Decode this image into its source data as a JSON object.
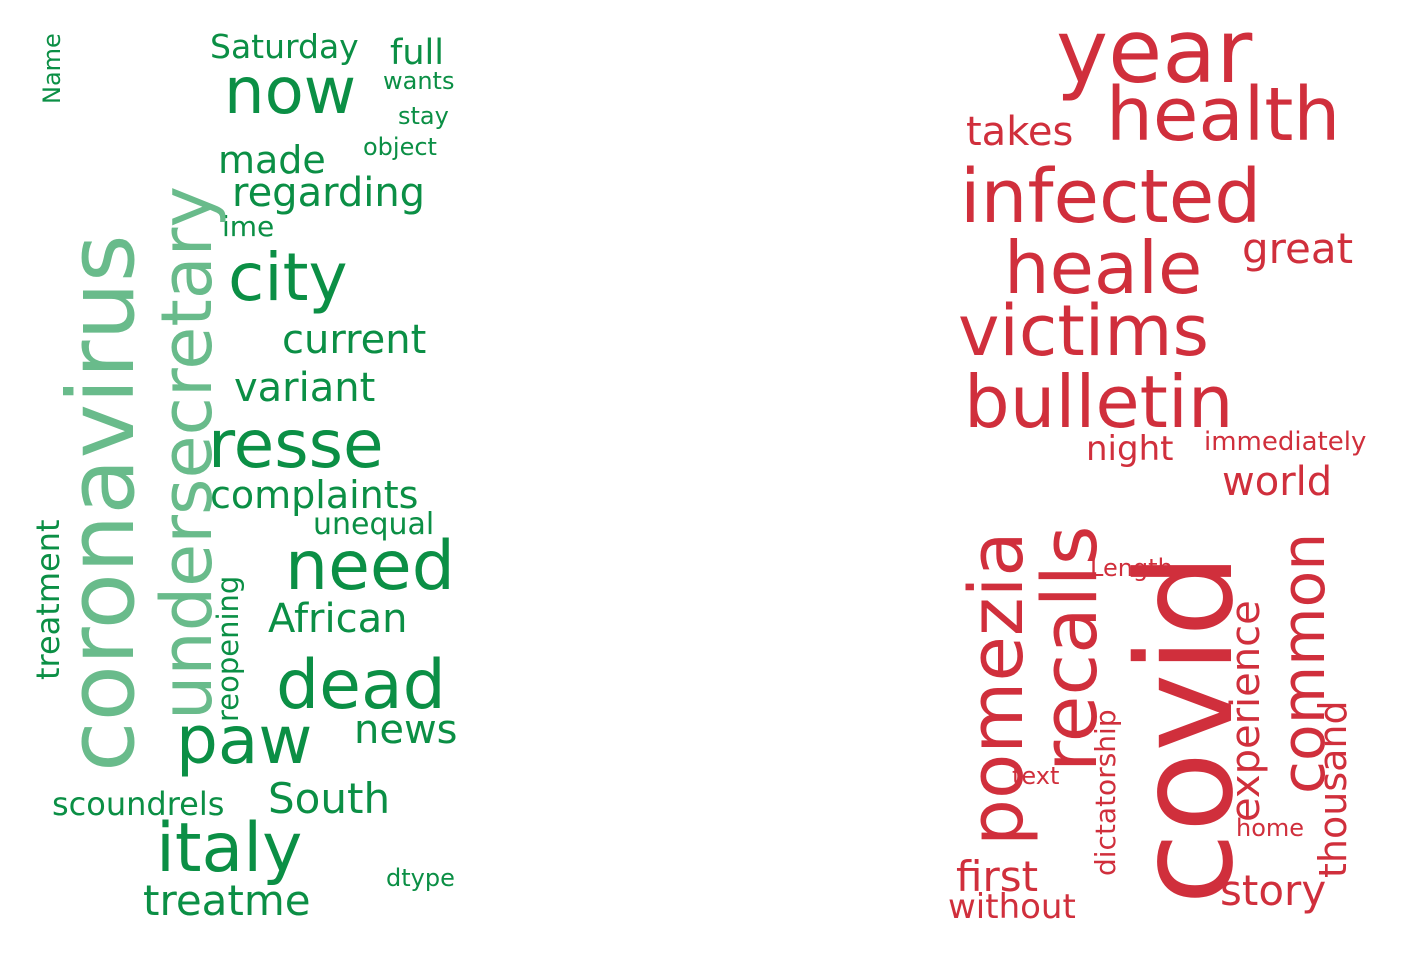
{
  "left_cloud": {
    "colors": {
      "primary": "#0b8f45",
      "light": "#69bb8b"
    },
    "words": {
      "coronavirus": "coronavirus",
      "undersecretary": "undersecretary",
      "now": "now",
      "saturday": "Saturday",
      "full": "full",
      "wants": "wants",
      "stay": "stay",
      "object": "object",
      "made": "made",
      "regarding": "regarding",
      "ime": "ime",
      "city": "city",
      "current": "current",
      "variant": "variant",
      "resse": "resse",
      "complaints": "complaints",
      "unequal": "unequal",
      "need": "need",
      "african": "African",
      "dead": "dead",
      "paw": "paw",
      "news": "news",
      "south": "South",
      "scoundrels": "scoundrels",
      "italy": "italy",
      "dtype": "dtype",
      "treatme": "treatme",
      "name": "Name",
      "treatment": "treatment",
      "reopening": "reopening"
    }
  },
  "right_cloud": {
    "colors": {
      "primary": "#d02f3c"
    },
    "words": {
      "year": "year",
      "health": "health",
      "takes": "takes",
      "infected": "infected",
      "heale": "heale",
      "great": "great",
      "victims": "victims",
      "bulletin": "bulletin",
      "night": "night",
      "immediately": "immediately",
      "world": "world",
      "covid": "covid",
      "pomezia": "pomezia",
      "recalls": "recalls",
      "common": "common",
      "experience": "experience",
      "length": "Length",
      "dictatorship": "dictatorship",
      "thousand": "thousand",
      "text": "text",
      "home": "home",
      "first": "first",
      "without": "without",
      "story": "story"
    }
  }
}
